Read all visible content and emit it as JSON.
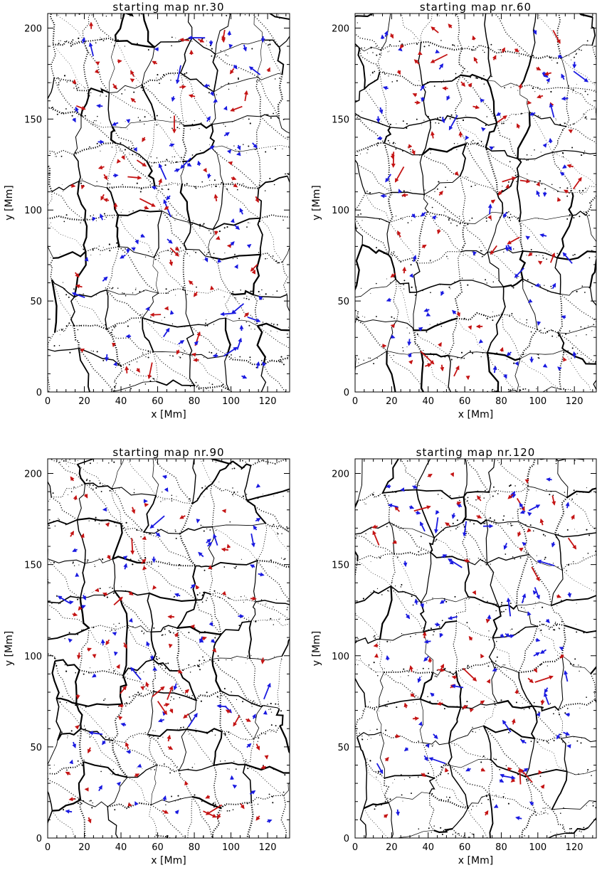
{
  "figure": {
    "colors": {
      "red_arrow": "#c41414",
      "blue_arrow": "#1a1ae0",
      "lanes": "#000000",
      "background": "#ffffff"
    }
  },
  "chart_data": [
    {
      "type": "scatter",
      "title": "starting map nr.30",
      "xlabel": "x [Mm]",
      "ylabel": "y [Mm]",
      "xlim": [
        0,
        132
      ],
      "ylim": [
        0,
        208
      ],
      "x_ticks": [
        "0",
        "20",
        "40",
        "60",
        "80",
        "100",
        "120"
      ],
      "y_ticks": [
        "0",
        "50",
        "100",
        "150",
        "200"
      ],
      "grid": false,
      "description_series": [
        {
          "color": "red",
          "kind": "flow arrows"
        },
        {
          "color": "blue",
          "kind": "flow arrows"
        }
      ]
    },
    {
      "type": "scatter",
      "title": "starting map nr.60",
      "xlabel": "x [Mm]",
      "ylabel": "y [Mm]",
      "xlim": [
        0,
        132
      ],
      "ylim": [
        0,
        208
      ],
      "x_ticks": [
        "0",
        "20",
        "40",
        "60",
        "80",
        "100",
        "120"
      ],
      "y_ticks": [
        "0",
        "50",
        "100",
        "150",
        "200"
      ],
      "grid": false
    },
    {
      "type": "scatter",
      "title": "starting map nr.90",
      "xlabel": "x [Mm]",
      "ylabel": "y [Mm]",
      "xlim": [
        0,
        132
      ],
      "ylim": [
        0,
        208
      ],
      "x_ticks": [
        "0",
        "20",
        "40",
        "60",
        "80",
        "100",
        "120"
      ],
      "y_ticks": [
        "0",
        "50",
        "100",
        "150",
        "200"
      ],
      "grid": false
    },
    {
      "type": "scatter",
      "title": "starting map nr.120",
      "xlabel": "x [Mm]",
      "ylabel": "y [Mm]",
      "xlim": [
        0,
        132
      ],
      "ylim": [
        0,
        208
      ],
      "x_ticks": [
        "0",
        "20",
        "40",
        "60",
        "80",
        "100",
        "120"
      ],
      "y_ticks": [
        "0",
        "50",
        "100",
        "150",
        "200"
      ],
      "grid": false
    }
  ]
}
